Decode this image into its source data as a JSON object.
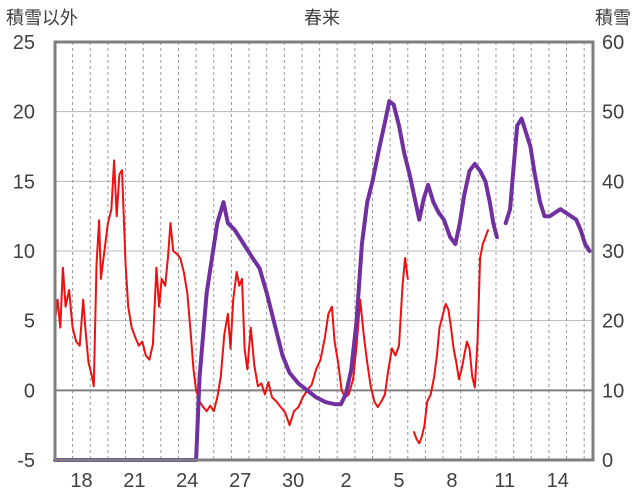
{
  "chart_data": {
    "type": "line",
    "title": "春来",
    "left_axis_title": "積雪以外",
    "right_axis_title": "積雪",
    "x_tick_labels": [
      "18",
      "21",
      "24",
      "27",
      "30",
      "2",
      "5",
      "8",
      "11",
      "14"
    ],
    "y_left_ticks": [
      "-5",
      "0",
      "5",
      "10",
      "15",
      "20",
      "25"
    ],
    "y_right_ticks": [
      "0",
      "10",
      "20",
      "30",
      "40",
      "50",
      "60"
    ],
    "ylim_left": [
      -5,
      25
    ],
    "ylim_right": [
      0,
      60
    ],
    "xlim": [
      0,
      30.5
    ],
    "grid": true,
    "colors": {
      "temperature": "#ee1111",
      "snow_depth": "#7030a0",
      "frame": "#7f7f7f",
      "grid": "#a0a0a0"
    },
    "series": [
      {
        "axis": "left",
        "color": "#ee1111",
        "segments": [
          [
            [
              0,
              5
            ],
            [
              0.15,
              6.5
            ],
            [
              0.3,
              4.5
            ],
            [
              0.45,
              8.8
            ],
            [
              0.6,
              6
            ],
            [
              0.8,
              7.2
            ],
            [
              1,
              4.5
            ],
            [
              1.2,
              3.5
            ],
            [
              1.4,
              3.2
            ],
            [
              1.6,
              6.5
            ],
            [
              1.75,
              4
            ],
            [
              1.9,
              2
            ],
            [
              2.1,
              1
            ],
            [
              2.2,
              0.3
            ],
            [
              2.35,
              9
            ],
            [
              2.5,
              12.2
            ],
            [
              2.6,
              8
            ],
            [
              2.8,
              10
            ],
            [
              3,
              12
            ],
            [
              3.2,
              13
            ],
            [
              3.35,
              16.5
            ],
            [
              3.5,
              12.5
            ],
            [
              3.65,
              15.5
            ],
            [
              3.8,
              15.8
            ],
            [
              4,
              9
            ],
            [
              4.15,
              6
            ],
            [
              4.35,
              4.5
            ],
            [
              4.55,
              3.8
            ],
            [
              4.75,
              3.2
            ],
            [
              4.95,
              3.5
            ],
            [
              5.15,
              2.5
            ],
            [
              5.35,
              2.2
            ],
            [
              5.55,
              3.3
            ],
            [
              5.75,
              8.8
            ],
            [
              5.9,
              6
            ],
            [
              6.05,
              8
            ],
            [
              6.25,
              7.5
            ],
            [
              6.4,
              9.5
            ],
            [
              6.55,
              12
            ],
            [
              6.7,
              10
            ],
            [
              6.9,
              9.8
            ],
            [
              7.1,
              9.5
            ],
            [
              7.3,
              8.5
            ],
            [
              7.5,
              7
            ],
            [
              7.7,
              4
            ],
            [
              7.85,
              1.5
            ],
            [
              8,
              0
            ],
            [
              8.2,
              -0.8
            ],
            [
              8.4,
              -1.2
            ],
            [
              8.6,
              -1.5
            ],
            [
              8.8,
              -1.1
            ],
            [
              9,
              -1.5
            ],
            [
              9.2,
              -0.5
            ],
            [
              9.4,
              1
            ],
            [
              9.6,
              4
            ],
            [
              9.8,
              5.5
            ],
            [
              9.95,
              3
            ],
            [
              10.1,
              6.5
            ],
            [
              10.3,
              8.5
            ],
            [
              10.45,
              7.5
            ],
            [
              10.6,
              8
            ],
            [
              10.75,
              3
            ],
            [
              10.9,
              1.5
            ],
            [
              11.1,
              4.5
            ],
            [
              11.3,
              1.8
            ],
            [
              11.5,
              0.3
            ],
            [
              11.7,
              0.5
            ],
            [
              11.9,
              -0.3
            ],
            [
              12.1,
              0.6
            ],
            [
              12.3,
              -0.5
            ],
            [
              12.55,
              -0.8
            ],
            [
              12.8,
              -1.2
            ],
            [
              13.05,
              -1.6
            ],
            [
              13.3,
              -2.5
            ],
            [
              13.55,
              -1.5
            ],
            [
              13.8,
              -1.2
            ],
            [
              14.05,
              -0.5
            ],
            [
              14.3,
              0
            ],
            [
              14.55,
              0.4
            ],
            [
              14.8,
              1.5
            ],
            [
              15.05,
              2.2
            ],
            [
              15.3,
              3.8
            ],
            [
              15.5,
              5.5
            ],
            [
              15.7,
              6
            ],
            [
              15.85,
              3.5
            ],
            [
              16.05,
              2
            ],
            [
              16.25,
              0
            ],
            [
              16.45,
              -0.5
            ],
            [
              16.65,
              -0.3
            ],
            [
              16.9,
              0.8
            ],
            [
              17.1,
              3.2
            ],
            [
              17.3,
              6.5
            ],
            [
              17.5,
              4
            ],
            [
              17.7,
              2
            ],
            [
              17.9,
              0.3
            ],
            [
              18.1,
              -0.8
            ],
            [
              18.3,
              -1.2
            ],
            [
              18.5,
              -0.8
            ],
            [
              18.7,
              -0.3
            ],
            [
              18.9,
              1.5
            ],
            [
              19.1,
              3
            ],
            [
              19.3,
              2.5
            ],
            [
              19.5,
              3.2
            ],
            [
              19.7,
              7.5
            ],
            [
              19.85,
              9.5
            ],
            [
              20,
              8
            ]
          ],
          [
            [
              20.35,
              -3
            ],
            [
              20.5,
              -3.5
            ],
            [
              20.65,
              -3.8
            ],
            [
              20.8,
              -3.3
            ],
            [
              20.95,
              -2.5
            ],
            [
              21.1,
              -0.8
            ],
            [
              21.3,
              -0.3
            ],
            [
              21.5,
              1
            ],
            [
              21.65,
              2.5
            ],
            [
              21.8,
              4.5
            ],
            [
              22,
              5.5
            ],
            [
              22.15,
              6.2
            ],
            [
              22.3,
              5.8
            ],
            [
              22.45,
              4.5
            ],
            [
              22.6,
              3
            ],
            [
              22.75,
              2
            ],
            [
              22.9,
              0.8
            ],
            [
              23.05,
              1.5
            ],
            [
              23.2,
              2.5
            ],
            [
              23.35,
              3.5
            ],
            [
              23.5,
              3
            ],
            [
              23.65,
              1
            ],
            [
              23.8,
              0.2
            ],
            [
              23.95,
              3.5
            ],
            [
              24.1,
              9.5
            ],
            [
              24.25,
              10.5
            ],
            [
              24.4,
              11
            ],
            [
              24.55,
              11.5
            ]
          ]
        ]
      },
      {
        "axis": "right",
        "color": "#7030a0",
        "segments": [
          [
            [
              0,
              0
            ],
            [
              8,
              0
            ],
            [
              8.2,
              12
            ],
            [
              8.6,
              24
            ],
            [
              9.2,
              34
            ],
            [
              9.55,
              37
            ],
            [
              9.8,
              34
            ],
            [
              10.2,
              33
            ],
            [
              10.7,
              31
            ],
            [
              11.2,
              29
            ],
            [
              11.6,
              27.5
            ],
            [
              12,
              24
            ],
            [
              12.4,
              20
            ],
            [
              12.9,
              15
            ],
            [
              13.3,
              12.5
            ],
            [
              13.8,
              11
            ],
            [
              14.3,
              10
            ],
            [
              14.8,
              9
            ],
            [
              15.35,
              8.3
            ],
            [
              15.9,
              8
            ],
            [
              16.2,
              8
            ],
            [
              16.5,
              9.5
            ],
            [
              16.8,
              13
            ],
            [
              17.1,
              20
            ],
            [
              17.4,
              31
            ],
            [
              17.7,
              37
            ],
            [
              18,
              40
            ],
            [
              18.4,
              45
            ],
            [
              18.75,
              49
            ],
            [
              18.95,
              51.5
            ],
            [
              19.2,
              51
            ],
            [
              19.5,
              48
            ],
            [
              19.8,
              44
            ],
            [
              20.1,
              41
            ],
            [
              20.4,
              37.5
            ],
            [
              20.65,
              34.5
            ],
            [
              20.9,
              37.5
            ],
            [
              21.15,
              39.5
            ],
            [
              21.45,
              37
            ],
            [
              21.75,
              35.5
            ],
            [
              22.05,
              34.5
            ],
            [
              22.4,
              32
            ],
            [
              22.7,
              31
            ],
            [
              22.95,
              34
            ],
            [
              23.2,
              38
            ],
            [
              23.5,
              41.5
            ],
            [
              23.8,
              42.5
            ],
            [
              24.1,
              41.5
            ],
            [
              24.4,
              40
            ],
            [
              24.65,
              37
            ],
            [
              24.85,
              34
            ],
            [
              25.05,
              32
            ]
          ],
          [
            [
              25.55,
              34
            ],
            [
              25.8,
              36
            ],
            [
              25.95,
              40.5
            ],
            [
              26.2,
              48
            ],
            [
              26.45,
              49
            ],
            [
              26.7,
              47
            ],
            [
              26.95,
              45
            ],
            [
              27.2,
              41
            ],
            [
              27.5,
              37
            ],
            [
              27.75,
              35
            ],
            [
              28.05,
              35
            ],
            [
              28.35,
              35.5
            ],
            [
              28.65,
              36
            ],
            [
              28.95,
              35.5
            ],
            [
              29.25,
              35
            ],
            [
              29.55,
              34.5
            ],
            [
              29.8,
              33
            ],
            [
              30.05,
              31
            ],
            [
              30.3,
              30
            ]
          ]
        ]
      }
    ]
  }
}
